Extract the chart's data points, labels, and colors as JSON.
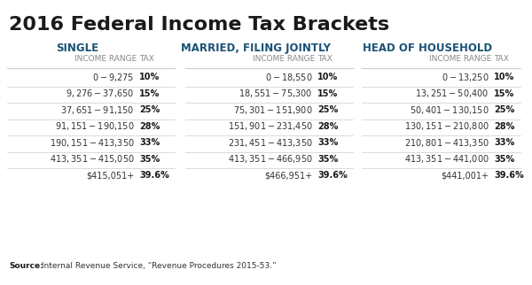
{
  "title": "2016 Federal Income Tax Brackets",
  "title_color": "#1a1a1a",
  "background_color": "#ffffff",
  "source_text": "Source: Internal Revenue Service, “Revenue Procedures 2015-53.”",
  "sections": [
    {
      "header": "SINGLE",
      "col1_label": "INCOME RANGE",
      "col2_label": "TAX",
      "rows": [
        [
          "$0 -  $9,275",
          "10%"
        ],
        [
          "$9,276 -  $37,650",
          "15%"
        ],
        [
          "$37,651 -  $91,150",
          "25%"
        ],
        [
          "$91,151 - $190,150",
          "28%"
        ],
        [
          "$190,151 - $413,350",
          "33%"
        ],
        [
          "$413,351 - $415,050",
          "35%"
        ],
        [
          "$415,051+",
          "39.6%"
        ]
      ]
    },
    {
      "header": "MARRIED, FILING JOINTLY",
      "col1_label": "INCOME RANGE",
      "col2_label": "TAX",
      "rows": [
        [
          "$0 -  $18,550",
          "10%"
        ],
        [
          "$18,551 -  $75,300",
          "15%"
        ],
        [
          "$75,301 - $151,900",
          "25%"
        ],
        [
          "$151,901 - $231,450",
          "28%"
        ],
        [
          "$231,451 - $413,350",
          "33%"
        ],
        [
          "$413,351 - $466,950",
          "35%"
        ],
        [
          "$466,951+",
          "39.6%"
        ]
      ]
    },
    {
      "header": "HEAD OF HOUSEHOLD",
      "col1_label": "INCOME RANGE",
      "col2_label": "TAX",
      "rows": [
        [
          "$0 -  $13,250",
          "10%"
        ],
        [
          "$13,251 -  $50,400",
          "15%"
        ],
        [
          "$50,401 - $130,150",
          "25%"
        ],
        [
          "$130,151 - $210,800",
          "28%"
        ],
        [
          "$210,801 - $413,350",
          "33%"
        ],
        [
          "$413,351 - $441,000",
          "35%"
        ],
        [
          "$441,001+",
          "39.6%"
        ]
      ]
    }
  ],
  "header_color": "#1a5276",
  "label_color": "#888888",
  "row_text_color": "#333333",
  "tax_bold_color": "#1a1a1a",
  "line_color": "#cccccc",
  "title_fontsize": 16,
  "header_fontsize": 8.5,
  "label_fontsize": 6.5,
  "row_fontsize": 7,
  "source_fontsize": 6.5
}
